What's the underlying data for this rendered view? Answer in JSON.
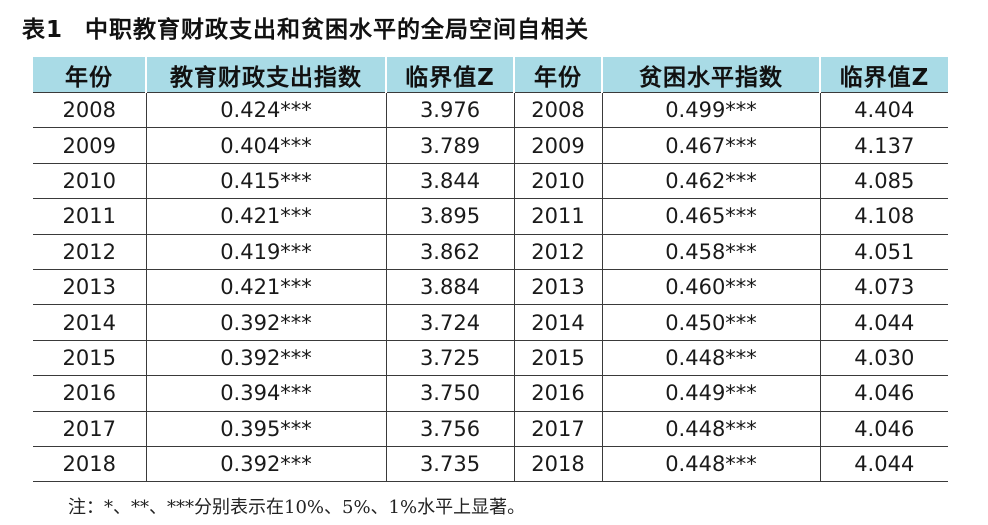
{
  "title": {
    "label": "表1",
    "text": "中职教育财政支出和贫困水平的全局空间自相关"
  },
  "table": {
    "headers": [
      "年份",
      "教育财政支出指数",
      "临界值Z",
      "年份",
      "贫困水平指数",
      "临界值Z"
    ],
    "rows": [
      [
        "2008",
        "0.424***",
        "3.976",
        "2008",
        "0.499***",
        "4.404"
      ],
      [
        "2009",
        "0.404***",
        "3.789",
        "2009",
        "0.467***",
        "4.137"
      ],
      [
        "2010",
        "0.415***",
        "3.844",
        "2010",
        "0.462***",
        "4.085"
      ],
      [
        "2011",
        "0.421***",
        "3.895",
        "2011",
        "0.465***",
        "4.108"
      ],
      [
        "2012",
        "0.419***",
        "3.862",
        "2012",
        "0.458***",
        "4.051"
      ],
      [
        "2013",
        "0.421***",
        "3.884",
        "2013",
        "0.460***",
        "4.073"
      ],
      [
        "2014",
        "0.392***",
        "3.724",
        "2014",
        "0.450***",
        "4.044"
      ],
      [
        "2015",
        "0.392***",
        "3.725",
        "2015",
        "0.448***",
        "4.030"
      ],
      [
        "2016",
        "0.394***",
        "3.750",
        "2016",
        "0.449***",
        "4.046"
      ],
      [
        "2017",
        "0.395***",
        "3.756",
        "2017",
        "0.448***",
        "4.046"
      ],
      [
        "2018",
        "0.392***",
        "3.735",
        "2018",
        "0.448***",
        "4.044"
      ]
    ]
  },
  "note": "注：*、**、***分别表示在10%、5%、1%水平上显著。",
  "colors": {
    "header_background": "#a9dbe6",
    "rule_lines": "#3a3a3a"
  }
}
